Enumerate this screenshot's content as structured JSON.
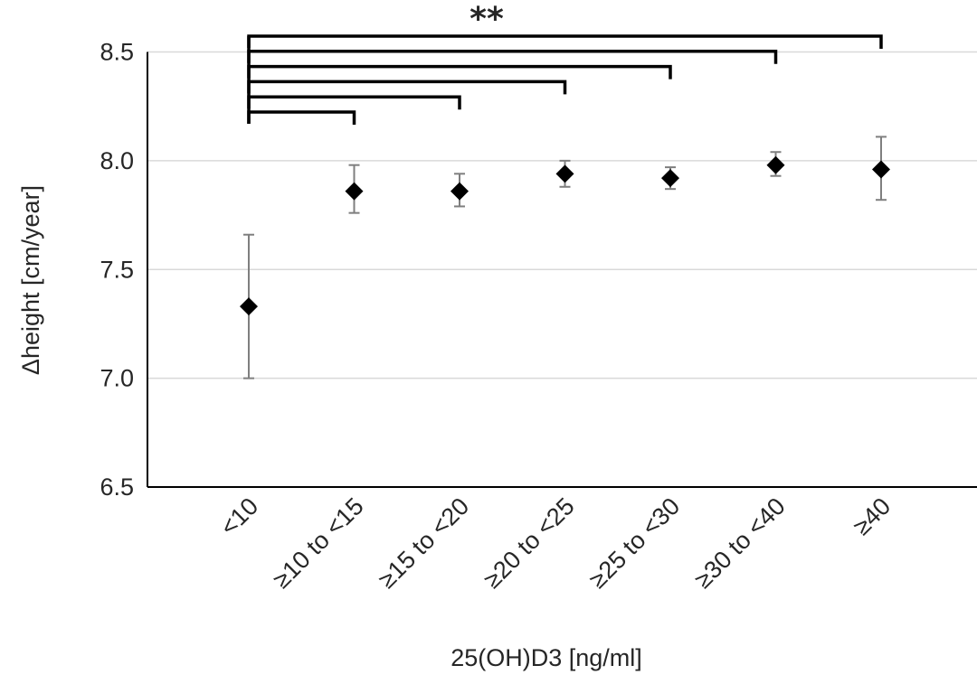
{
  "chart_data": {
    "type": "scatter",
    "xlabel": "25(OH)D3 [ng/ml]",
    "ylabel": "Δheight [cm/year]",
    "ylim": [
      6.5,
      8.5
    ],
    "yticks": [
      "6.5",
      "7.0",
      "7.5",
      "8.0",
      "8.5"
    ],
    "grid": true,
    "categories": [
      "<10",
      "≥10 to <15",
      "≥15 to <20",
      "≥20 to <25",
      "≥25 to <30",
      "≥30 to <40",
      "≥40"
    ],
    "series": [
      {
        "values": [
          7.33,
          7.86,
          7.86,
          7.94,
          7.92,
          7.98,
          7.96
        ],
        "error_low": [
          7.0,
          7.76,
          7.79,
          7.88,
          7.87,
          7.93,
          7.82
        ],
        "error_high": [
          7.66,
          7.98,
          7.94,
          8.0,
          7.97,
          8.04,
          8.11
        ]
      }
    ],
    "significance": {
      "label": "**",
      "brackets": [
        {
          "from": "<10",
          "to": "≥10 to <15"
        },
        {
          "from": "<10",
          "to": "≥15 to <20"
        },
        {
          "from": "<10",
          "to": "≥20 to <25"
        },
        {
          "from": "<10",
          "to": "≥25 to <30"
        },
        {
          "from": "<10",
          "to": "≥30 to <40"
        },
        {
          "from": "<10",
          "to": "≥40"
        }
      ]
    },
    "colors": {
      "marker": "#000000",
      "error_bar": "#7f7f7f",
      "gridline": "#d9d9d9",
      "axis": "#000000"
    }
  }
}
